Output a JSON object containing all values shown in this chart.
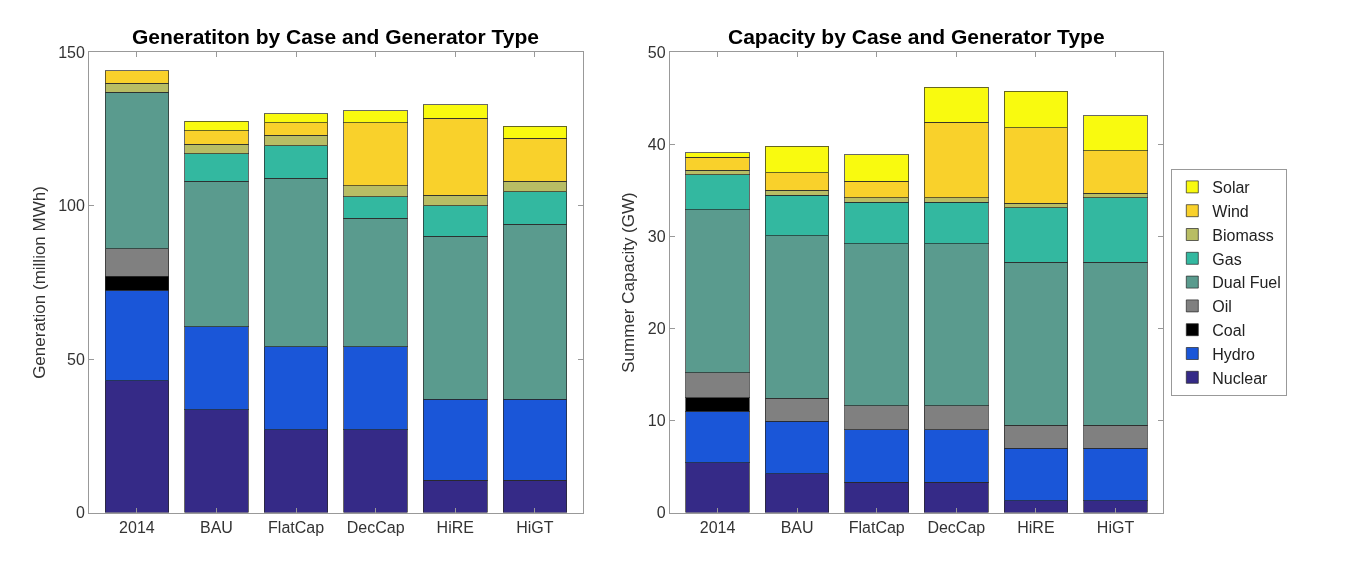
{
  "chart_data": [
    {
      "type": "bar",
      "stacked": true,
      "title": "Generatiton by Case and Generator Type",
      "ylabel": "Generation (million MWh)",
      "categories": [
        "2014",
        "BAU",
        "FlatCap",
        "DecCap",
        "HiRE",
        "HiGT"
      ],
      "ylim": [
        0,
        150
      ],
      "yticks": [
        0,
        50,
        100,
        150
      ],
      "grid": false,
      "series": [
        {
          "color": "#352a87",
          "values": [
            43,
            33.5,
            27,
            27,
            10.5,
            10.5
          ]
        },
        {
          "color": "#1a56d8",
          "values": [
            29.5,
            27,
            27,
            27,
            26.5,
            26.5
          ]
        },
        {
          "color": "#000000",
          "values": [
            4.5,
            null,
            null,
            null,
            null,
            null
          ]
        },
        {
          "color": "#808080",
          "values": [
            9,
            null,
            null,
            null,
            null,
            null
          ]
        },
        {
          "color": "#5a9b8e",
          "values": [
            51,
            47.5,
            55,
            42,
            53,
            57
          ]
        },
        {
          "color": "#33b8a0",
          "values": [
            null,
            9,
            10.5,
            7,
            10,
            10.5
          ]
        },
        {
          "color": "#b8bd64",
          "values": [
            3,
            3,
            3.5,
            3.5,
            3.5,
            3.5
          ]
        },
        {
          "color": "#f9d12b",
          "values": [
            4,
            4.5,
            4,
            20.5,
            25,
            14
          ]
        },
        {
          "color": "#f9fa0f",
          "values": [
            null,
            3,
            3,
            4,
            4.5,
            4
          ]
        }
      ]
    },
    {
      "type": "bar",
      "stacked": true,
      "title": "Capacity by Case and Generator Type",
      "ylabel": "Summer Capacity (GW)",
      "categories": [
        "2014",
        "BAU",
        "FlatCap",
        "DecCap",
        "HiRE",
        "HiGT"
      ],
      "ylim": [
        0,
        50
      ],
      "yticks": [
        0,
        10,
        20,
        30,
        40,
        50
      ],
      "grid": false,
      "legend": "right",
      "series": [
        {
          "name": "Nuclear",
          "color": "#352a87",
          "values": [
            5.4,
            4.2,
            3.3,
            3.3,
            1.3,
            1.3
          ]
        },
        {
          "name": "Hydro",
          "color": "#1a56d8",
          "values": [
            5.6,
            5.7,
            5.7,
            5.7,
            5.7,
            5.7
          ]
        },
        {
          "name": "Coal",
          "color": "#000000",
          "values": [
            1.5,
            null,
            null,
            null,
            null,
            null
          ]
        },
        {
          "name": "Oil",
          "color": "#808080",
          "values": [
            2.7,
            2.5,
            2.6,
            2.6,
            2.5,
            2.5
          ]
        },
        {
          "name": "Dual Fuel",
          "color": "#5a9b8e",
          "values": [
            17.7,
            17.7,
            17.6,
            17.6,
            17.7,
            17.7
          ]
        },
        {
          "name": "Gas",
          "color": "#33b8a0",
          "values": [
            3.8,
            4.4,
            4.5,
            4.5,
            5.9,
            7
          ]
        },
        {
          "name": "Biomass",
          "color": "#b8bd64",
          "values": [
            0.5,
            0.5,
            0.5,
            0.5,
            0.5,
            0.5
          ]
        },
        {
          "name": "Wind",
          "color": "#f9d12b",
          "values": [
            1.4,
            1.9,
            1.8,
            8.2,
            8.2,
            4.6
          ]
        },
        {
          "name": "Solar",
          "color": "#f9fa0f",
          "values": [
            0.5,
            2.9,
            2.9,
            3.8,
            4,
            3.8
          ]
        }
      ]
    }
  ]
}
